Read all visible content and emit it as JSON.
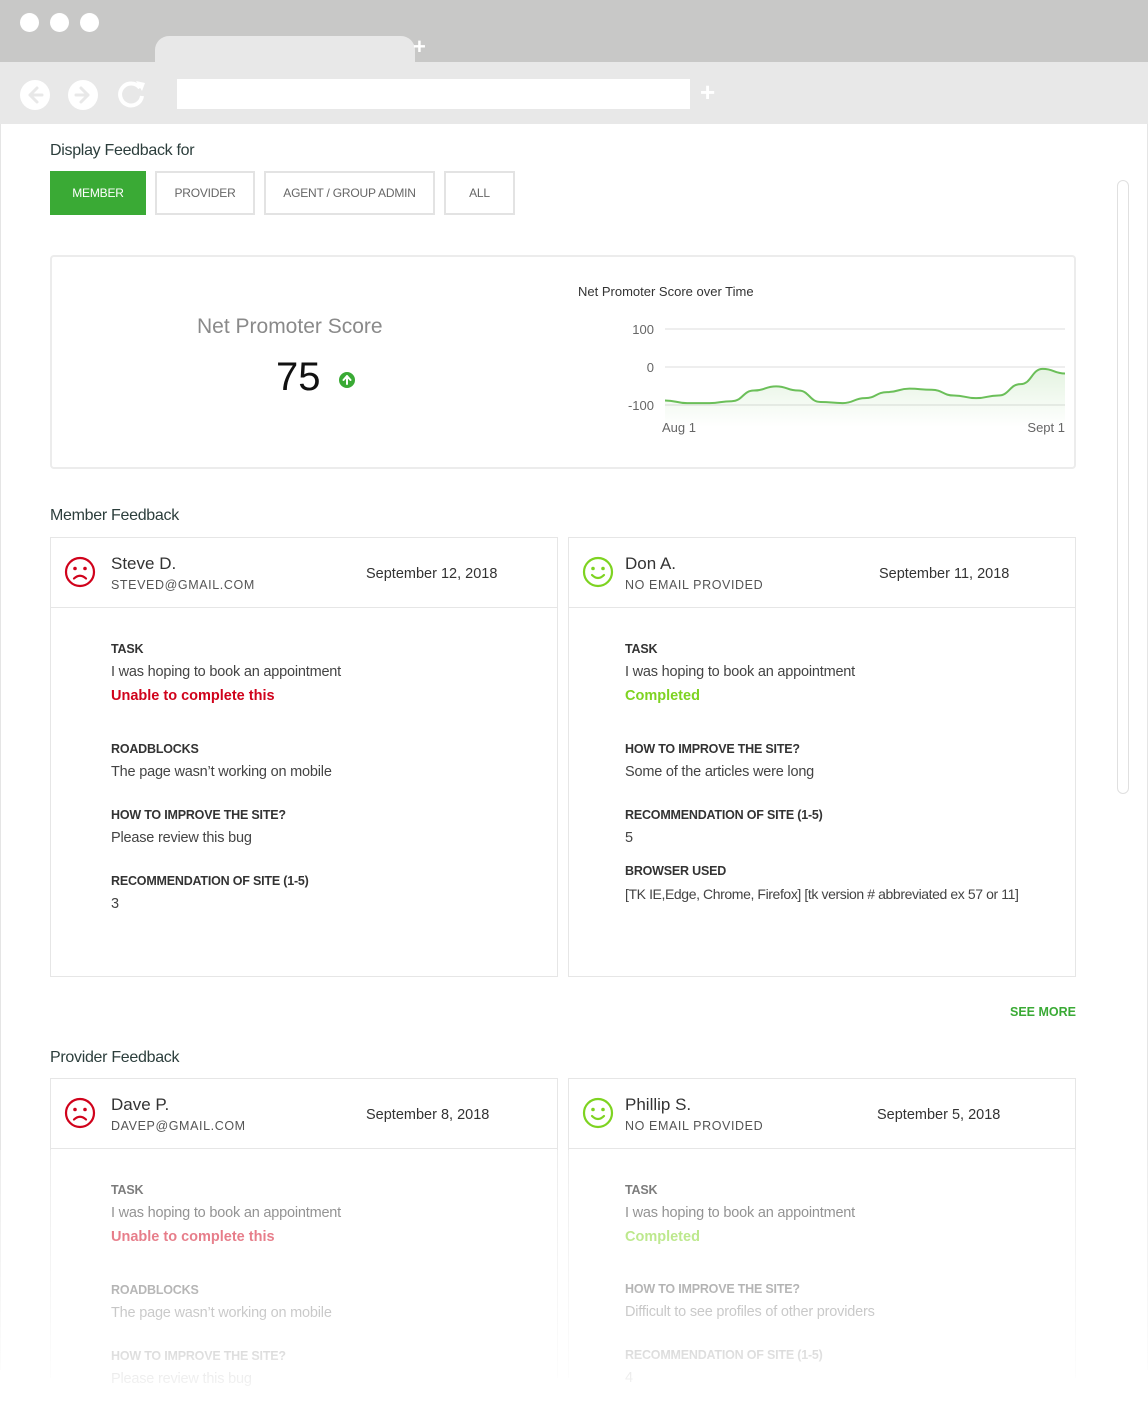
{
  "filter": {
    "title": "Display Feedback for",
    "buttons": [
      "MEMBER",
      "PROVIDER",
      "AGENT / GROUP ADMIN",
      "ALL"
    ],
    "active": "MEMBER"
  },
  "nps": {
    "title": "Net Promoter Score",
    "value": "75",
    "trend": "up"
  },
  "chart_data": {
    "type": "line",
    "title": "Net Promoter Score  over Time",
    "xlabel": "",
    "ylabel": "",
    "x_tick_labels": [
      "Aug 1",
      "Sept 1"
    ],
    "y_ticks": [
      100,
      0,
      -100
    ],
    "ylim": [
      -100,
      100
    ],
    "grid": true,
    "series": [
      {
        "values": [
          -88,
          -95,
          -95,
          -90,
          -62,
          -51,
          -62,
          -92,
          -95,
          -82,
          -66,
          -57,
          -60,
          -75,
          -82,
          -75,
          -45,
          -5,
          -17
        ]
      }
    ],
    "line_color": "#6bbf59"
  },
  "member": {
    "title": "Member Feedback",
    "see_more": "SEE MORE",
    "cards": [
      {
        "name": "Steve D.",
        "email": "STEVED@GMAIL.COM",
        "date": "September 12, 2018",
        "sentiment": "negative",
        "task_label": "TASK",
        "task": "I was hoping to book an appointment",
        "status": "Unable to complete this",
        "roadblocks_label": "ROADBLOCKS",
        "roadblocks": "The page wasn’t working on mobile",
        "improve_label": "HOW TO IMPROVE THE SITE?",
        "improve": "Please review this bug",
        "rec_label": "RECOMMENDATION OF SITE (1-5)",
        "rec": "3"
      },
      {
        "name": "Don A.",
        "email": "NO EMAIL PROVIDED",
        "date": "September 11, 2018",
        "sentiment": "positive",
        "task_label": "TASK",
        "task": "I was hoping to book an appointment",
        "status": "Completed",
        "improve_label": "HOW TO IMPROVE THE SITE?",
        "improve": "Some of the articles were long",
        "rec_label": "RECOMMENDATION OF SITE (1-5)",
        "rec": "5",
        "browser_label": "BROWSER USED",
        "browser": "[TK IE,Edge, Chrome, Firefox] [tk version # abbreviated ex 57 or 11]"
      }
    ]
  },
  "provider": {
    "title": "Provider Feedback",
    "cards": [
      {
        "name": "Dave P.",
        "email": "DAVEP@GMAIL.COM",
        "date": "September 8, 2018",
        "sentiment": "negative",
        "task_label": "TASK",
        "task": "I was hoping to book an appointment",
        "status": "Unable to complete this",
        "roadblocks_label": "ROADBLOCKS",
        "roadblocks": "The page wasn’t working on mobile",
        "improve_label": "HOW TO IMPROVE THE SITE?",
        "improve": "Please review this bug"
      },
      {
        "name": "Phillip S.",
        "email": "NO EMAIL PROVIDED",
        "date": "September 5, 2018",
        "sentiment": "positive",
        "task_label": "TASK",
        "task": "I was hoping to book an appointment",
        "status": "Completed",
        "improve_label": "HOW TO IMPROVE THE SITE?",
        "improve": "Difficult to see profiles of other providers",
        "rec_label": "RECOMMENDATION OF SITE (1-5)",
        "rec": "4"
      }
    ]
  },
  "colors": {
    "accent": "#3aaa35",
    "negative": "#d0021b",
    "positive": "#7ed321"
  }
}
